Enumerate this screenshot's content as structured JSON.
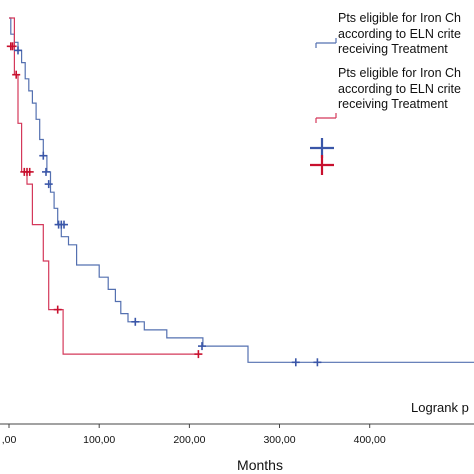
{
  "chart_data": {
    "type": "line",
    "subtype": "kaplan-meier",
    "title": "",
    "xlabel": "Months",
    "ylabel": "",
    "xlim": [
      0,
      560
    ],
    "x_ticks": [
      0,
      100,
      200,
      300,
      400
    ],
    "x_tick_labels": [
      ",00",
      "100,00",
      "200,00",
      "300,00",
      "400,00"
    ],
    "grid": false,
    "legend_position": "top-right",
    "annotation": "Logrank p",
    "series": [
      {
        "name": "Pts eligible for Iron Ch according to ELN crite receiving Treatment",
        "color": "#5470b0",
        "censor_color": "#3a56a8",
        "legend_lines": [
          "Pts eligible for Iron Ch",
          "according to ELN crite",
          "receiving Treatment"
        ],
        "steps": [
          [
            0,
            1.0
          ],
          [
            2,
            0.96
          ],
          [
            6,
            0.94
          ],
          [
            10,
            0.92
          ],
          [
            14,
            0.89
          ],
          [
            18,
            0.85
          ],
          [
            22,
            0.82
          ],
          [
            26,
            0.79
          ],
          [
            30,
            0.75
          ],
          [
            34,
            0.7
          ],
          [
            38,
            0.66
          ],
          [
            42,
            0.62
          ],
          [
            46,
            0.57
          ],
          [
            50,
            0.53
          ],
          [
            54,
            0.49
          ],
          [
            58,
            0.46
          ],
          [
            66,
            0.44
          ],
          [
            75,
            0.39
          ],
          [
            100,
            0.36
          ],
          [
            110,
            0.33
          ],
          [
            118,
            0.3
          ],
          [
            124,
            0.27
          ],
          [
            132,
            0.25
          ],
          [
            150,
            0.23
          ],
          [
            175,
            0.21
          ],
          [
            215,
            0.19
          ],
          [
            265,
            0.15
          ],
          [
            560,
            0.15
          ]
        ],
        "censored": [
          [
            10,
            0.92
          ],
          [
            38,
            0.66
          ],
          [
            41,
            0.62
          ],
          [
            44,
            0.59
          ],
          [
            55,
            0.49
          ],
          [
            58,
            0.49
          ],
          [
            61,
            0.49
          ],
          [
            140,
            0.25
          ],
          [
            214,
            0.19
          ],
          [
            318,
            0.15
          ],
          [
            342,
            0.15
          ]
        ]
      },
      {
        "name": "Pts eligible for Iron Ch according to ELN crite receiving Treatment",
        "color": "#d4385a",
        "censor_color": "#c8102e",
        "legend_lines": [
          "Pts eligible for Iron Ch",
          "according to ELN crite",
          "receiving Treatment"
        ],
        "steps": [
          [
            0,
            1.0
          ],
          [
            6,
            0.86
          ],
          [
            10,
            0.74
          ],
          [
            14,
            0.62
          ],
          [
            20,
            0.59
          ],
          [
            26,
            0.49
          ],
          [
            38,
            0.4
          ],
          [
            44,
            0.28
          ],
          [
            60,
            0.17
          ],
          [
            210,
            0.17
          ]
        ],
        "censored": [
          [
            2,
            0.93
          ],
          [
            4,
            0.93
          ],
          [
            8,
            0.86
          ],
          [
            17,
            0.62
          ],
          [
            20,
            0.62
          ],
          [
            23,
            0.62
          ],
          [
            54,
            0.28
          ],
          [
            210,
            0.17
          ]
        ]
      }
    ]
  }
}
